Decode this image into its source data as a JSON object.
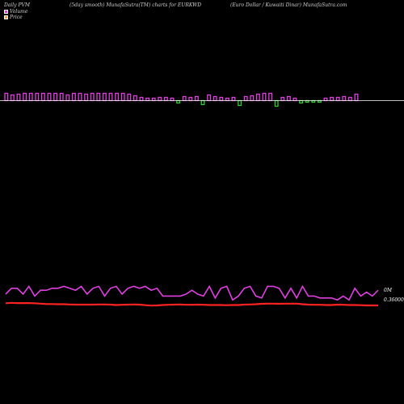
{
  "header": {
    "left": "Daily PVM",
    "center": "(5day smooth) MunafaSutra(TM) charts for EURKWD",
    "right": "(Euro  Dollar / Kuwaiti  Dinar) MunafaSutra.com"
  },
  "legend": [
    {
      "label": "Volume",
      "color": "#e040e0"
    },
    {
      "label": "Price",
      "color": "#f0a040"
    }
  ],
  "colors": {
    "bar_up": "#e040e0",
    "bar_down": "#33cc33",
    "pvm_line": "#e040e0",
    "price_line": "#ff2222",
    "baseline": "#ffffff"
  },
  "chart_data": {
    "type": "bar",
    "title": "(5day smooth) MunafaSutra(TM) charts for EURKWD",
    "ytick_labels": [
      "0M",
      "0.36000"
    ],
    "volume_bars": [
      9,
      7,
      8,
      9,
      9,
      9,
      9,
      9,
      9,
      9,
      7,
      9,
      9,
      8,
      9,
      9,
      9,
      9,
      9,
      9,
      8,
      6,
      4,
      3,
      3,
      4,
      4,
      3,
      3,
      5,
      4,
      5,
      5,
      7,
      5,
      4,
      3,
      4,
      6,
      5,
      6,
      8,
      9,
      9,
      7,
      4,
      5,
      3,
      3,
      2,
      2,
      2,
      3,
      4,
      4,
      5,
      4,
      8
    ],
    "volume_signs": [
      1,
      1,
      1,
      1,
      1,
      1,
      1,
      1,
      1,
      1,
      1,
      1,
      1,
      1,
      1,
      1,
      1,
      1,
      1,
      1,
      1,
      1,
      1,
      1,
      1,
      1,
      1,
      1,
      -1,
      1,
      1,
      1,
      -1,
      1,
      1,
      1,
      1,
      1,
      -1,
      1,
      1,
      1,
      1,
      1,
      -1,
      1,
      1,
      1,
      -1,
      -1,
      -1,
      -1,
      1,
      1,
      1,
      1,
      1,
      1
    ],
    "pvm_line": [
      5,
      8,
      8,
      5,
      9,
      4,
      7,
      7,
      8,
      8,
      9,
      8,
      7,
      9,
      5,
      8,
      9,
      4,
      8,
      9,
      5,
      8,
      9,
      8,
      9,
      7,
      8,
      4,
      4,
      4,
      4,
      5,
      7,
      5,
      4,
      9,
      3,
      8,
      9,
      2,
      4,
      8,
      9,
      4,
      3,
      9,
      9,
      8,
      3,
      8,
      3,
      9,
      4,
      4,
      3,
      3,
      3,
      2,
      4,
      2,
      8,
      4,
      6,
      4,
      7
    ],
    "price_line": [
      3.2,
      3.4,
      3.3,
      3.3,
      3.3,
      3.2,
      3,
      2.8,
      2.8,
      2.7,
      2.7,
      2.6,
      2.5,
      2.5,
      2.5,
      2.5,
      2.6,
      2.6,
      2.5,
      2.3,
      2.4,
      2.5,
      2.6,
      2.5,
      2.2,
      2,
      2.1,
      2.3,
      2.4,
      2.5,
      2.6,
      2.4,
      2.4,
      2.5,
      2.4,
      2.3,
      2.3,
      2.3,
      2.2,
      2.3,
      2.3,
      2.5,
      2.6,
      2.7,
      2.9,
      3,
      3,
      2.9,
      3,
      3,
      3,
      2.7,
      2.5,
      2.4,
      2.4,
      2.3,
      2.3,
      2.5,
      2.4,
      2.3,
      2.3,
      2.2,
      2.1,
      2.1,
      2.1
    ]
  }
}
